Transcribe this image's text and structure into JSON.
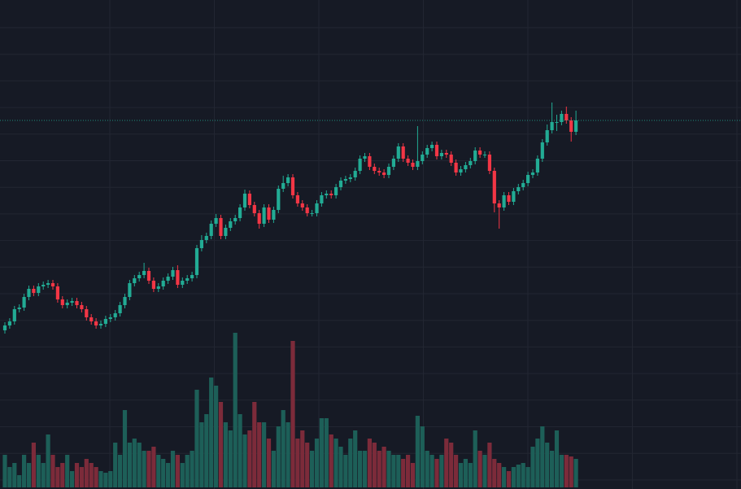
{
  "chart_data": {
    "type": "candlestick",
    "open": [
      195,
      201,
      206,
      221,
      223,
      236,
      246,
      241,
      249,
      251,
      253,
      249,
      233,
      226,
      229,
      231,
      226,
      221,
      211,
      206,
      201,
      203,
      209,
      211,
      216,
      226,
      236,
      253,
      259,
      263,
      268,
      256,
      246,
      249,
      256,
      261,
      269,
      251,
      256,
      259,
      263,
      296,
      306,
      311,
      326,
      333,
      311,
      321,
      329,
      333,
      346,
      363,
      349,
      339,
      326,
      346,
      331,
      343,
      369,
      376,
      383,
      361,
      351,
      346,
      339,
      339,
      351,
      361,
      363,
      361,
      371,
      379,
      381,
      383,
      391,
      406,
      409,
      396,
      391,
      389,
      386,
      396,
      406,
      421,
      406,
      401,
      396,
      403,
      411,
      419,
      423,
      409,
      413,
      411,
      401,
      389,
      393,
      398,
      403,
      416,
      411,
      411,
      391,
      351,
      346,
      361,
      353,
      366,
      371,
      376,
      386,
      389,
      406,
      426,
      441,
      451,
      451,
      461,
      453,
      439
    ],
    "high": [
      205,
      210,
      225,
      227,
      240,
      250,
      250,
      253,
      255,
      257,
      257,
      253,
      237,
      233,
      235,
      235,
      230,
      225,
      215,
      210,
      207,
      213,
      215,
      220,
      230,
      240,
      257,
      263,
      267,
      278,
      272,
      260,
      253,
      260,
      265,
      273,
      275,
      260,
      263,
      267,
      300,
      312,
      315,
      330,
      338,
      337,
      325,
      333,
      337,
      350,
      368,
      367,
      353,
      343,
      350,
      350,
      347,
      373,
      385,
      387,
      387,
      365,
      355,
      350,
      343,
      355,
      365,
      367,
      367,
      375,
      383,
      385,
      387,
      395,
      410,
      413,
      413,
      400,
      395,
      393,
      400,
      410,
      425,
      425,
      410,
      405,
      446,
      415,
      423,
      427,
      427,
      417,
      417,
      415,
      405,
      397,
      402,
      407,
      420,
      420,
      415,
      415,
      395,
      355,
      365,
      365,
      370,
      375,
      380,
      390,
      393,
      410,
      430,
      448,
      475,
      460,
      465,
      470,
      457,
      465
    ],
    "low": [
      191,
      197,
      202,
      217,
      219,
      232,
      237,
      237,
      245,
      247,
      245,
      229,
      222,
      222,
      225,
      222,
      217,
      207,
      202,
      197,
      197,
      199,
      205,
      207,
      212,
      222,
      232,
      249,
      255,
      259,
      252,
      242,
      242,
      245,
      252,
      257,
      247,
      247,
      252,
      255,
      259,
      292,
      302,
      307,
      322,
      307,
      307,
      317,
      325,
      329,
      342,
      345,
      335,
      320,
      322,
      327,
      327,
      339,
      365,
      372,
      357,
      347,
      342,
      335,
      335,
      335,
      347,
      357,
      357,
      357,
      367,
      375,
      377,
      379,
      387,
      402,
      392,
      387,
      385,
      382,
      382,
      392,
      402,
      402,
      397,
      392,
      392,
      399,
      407,
      415,
      405,
      405,
      407,
      397,
      385,
      385,
      389,
      394,
      399,
      407,
      407,
      387,
      340,
      320,
      342,
      349,
      349,
      362,
      367,
      372,
      382,
      385,
      402,
      422,
      437,
      440,
      447,
      449,
      427,
      435
    ],
    "close": [
      201,
      206,
      221,
      223,
      236,
      246,
      241,
      249,
      251,
      253,
      249,
      233,
      226,
      229,
      231,
      226,
      221,
      211,
      206,
      201,
      203,
      209,
      211,
      216,
      226,
      236,
      253,
      259,
      263,
      268,
      256,
      246,
      249,
      256,
      261,
      269,
      251,
      256,
      259,
      263,
      296,
      306,
      311,
      326,
      333,
      311,
      321,
      329,
      333,
      346,
      363,
      349,
      339,
      326,
      346,
      331,
      343,
      369,
      376,
      383,
      361,
      351,
      346,
      339,
      339,
      351,
      361,
      363,
      361,
      371,
      379,
      381,
      383,
      391,
      406,
      409,
      396,
      391,
      389,
      386,
      396,
      406,
      421,
      406,
      401,
      396,
      403,
      411,
      419,
      423,
      409,
      413,
      411,
      401,
      389,
      393,
      398,
      403,
      416,
      411,
      411,
      391,
      351,
      346,
      361,
      353,
      366,
      371,
      376,
      386,
      389,
      406,
      426,
      441,
      451,
      451,
      461,
      453,
      439,
      453
    ],
    "volume": [
      40,
      25,
      30,
      15,
      40,
      30,
      55,
      40,
      30,
      65,
      40,
      25,
      30,
      40,
      20,
      30,
      25,
      35,
      30,
      25,
      20,
      18,
      20,
      55,
      40,
      95,
      55,
      60,
      55,
      45,
      45,
      50,
      40,
      35,
      30,
      45,
      40,
      30,
      40,
      45,
      120,
      80,
      90,
      135,
      125,
      105,
      80,
      70,
      190,
      90,
      65,
      70,
      105,
      80,
      80,
      60,
      45,
      75,
      95,
      80,
      180,
      60,
      70,
      55,
      45,
      60,
      85,
      85,
      65,
      60,
      50,
      40,
      60,
      70,
      45,
      45,
      60,
      55,
      45,
      50,
      45,
      40,
      40,
      35,
      40,
      30,
      88,
      75,
      45,
      40,
      35,
      40,
      60,
      55,
      40,
      30,
      35,
      30,
      70,
      45,
      40,
      55,
      35,
      30,
      25,
      20,
      25,
      28,
      30,
      25,
      50,
      60,
      75,
      55,
      45,
      70,
      40,
      40,
      38,
      35
    ],
    "ylim": [
      0,
      601
    ],
    "volume_ylim": [
      0,
      601
    ],
    "up_color": "#22ab94",
    "down_color": "#f23645",
    "volume_up_color": "#1d5f58",
    "volume_down_color": "#7c2b3a",
    "grid": true,
    "last_price_line": true
  }
}
